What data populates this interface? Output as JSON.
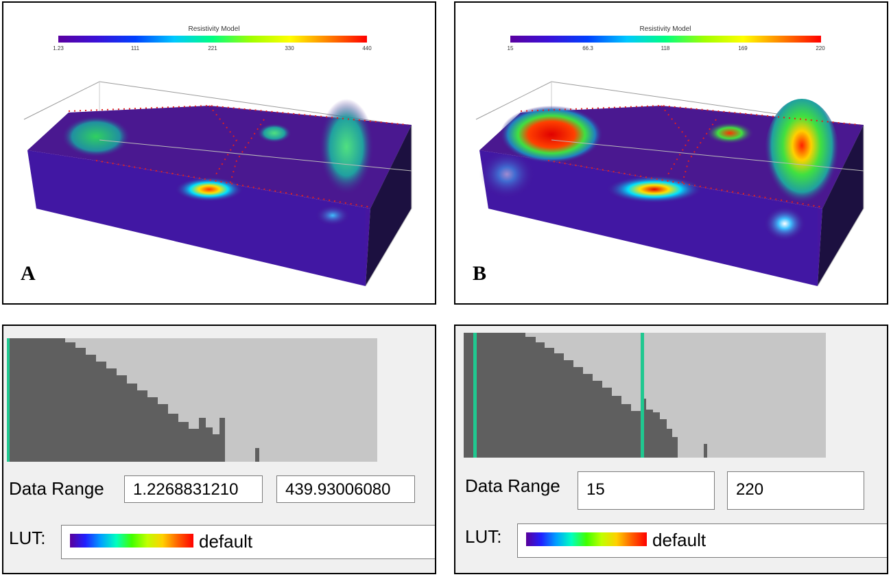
{
  "panels": [
    {
      "letter": "A",
      "colorbar": {
        "title": "Resistivity Model",
        "ticks": [
          "1.23",
          "111",
          "221",
          "330",
          "440"
        ]
      },
      "editor": {
        "data_range_label": "Data Range",
        "min_value": "1.2268831210",
        "max_value": "439.93006080",
        "lut_label": "LUT:",
        "lut_name": "default"
      }
    },
    {
      "letter": "B",
      "colorbar": {
        "title": "Resistivity Model",
        "ticks": [
          "15",
          "66.3",
          "118",
          "169",
          "220"
        ]
      },
      "editor": {
        "data_range_label": "Data Range",
        "min_value": "15",
        "max_value": "220",
        "lut_label": "LUT:",
        "lut_name": "default"
      }
    }
  ],
  "colors": {
    "histogram_bar": "#5f5f5f",
    "histogram_bg": "#c6c6c6",
    "range_marker": "#20c890",
    "model_base": "#4a1890"
  }
}
